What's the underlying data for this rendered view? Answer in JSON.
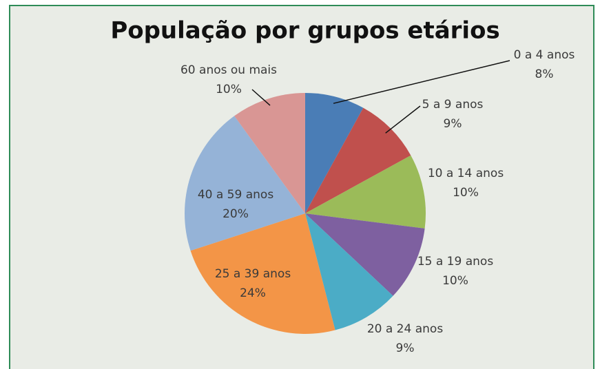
{
  "chart_data": {
    "type": "pie",
    "title": "População por grupos etários",
    "categories": [
      "0 a 4 anos",
      "5 a 9 anos",
      "10 a 14 anos",
      "15 a 19 anos",
      "20 a 24 anos",
      "25 a 39 anos",
      "40 a 59 anos",
      "60 anos ou mais"
    ],
    "values": [
      8,
      9,
      10,
      10,
      9,
      24,
      20,
      10
    ],
    "value_labels": [
      "8%",
      "9%",
      "10%",
      "10%",
      "9%",
      "24%",
      "20%",
      "10%"
    ],
    "colors": [
      "#4a7db6",
      "#c0504d",
      "#9bbb59",
      "#7e60a0",
      "#4bacc6",
      "#f39547",
      "#95b3d7",
      "#d99694"
    ]
  }
}
